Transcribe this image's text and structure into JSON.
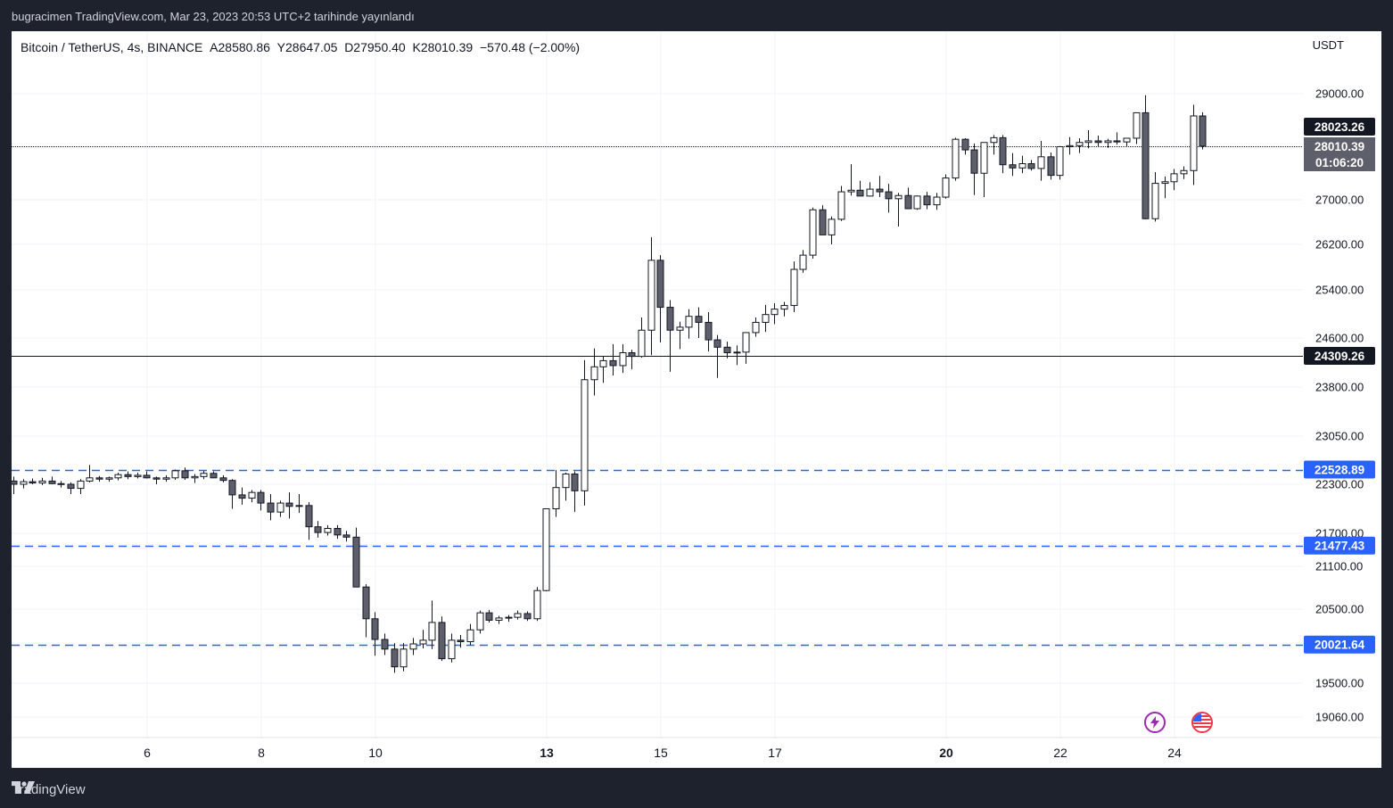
{
  "header": {
    "caption": "bugracimen TradingView.com, Mar 23, 2023 20:53 UTC+2 tarihinde yayınlandı"
  },
  "legend": {
    "symbol": "Bitcoin / TetherUS, 4s, BINANCE",
    "open": "A28580.86",
    "high": "Y28647.05",
    "low": "D27950.40",
    "close": "K28010.39",
    "change": "−570.48 (−2.00%)"
  },
  "footer": {
    "brand": "TradingView",
    "logo_icon": "tradingview-logo-icon"
  },
  "icons": {
    "flash": "lightning-icon",
    "flag": "us-flag-icon"
  },
  "colors": {
    "up_body": "#ffffff",
    "down_body": "#5d606b",
    "candle_stroke": "#131722",
    "dashed_line": "#2962ff",
    "label_blue": "#2962ff",
    "label_dark": "#131722",
    "label_gray": "#5d606b",
    "grid": "#f0f3fa"
  },
  "chart_data": {
    "type": "candlestick",
    "title": "Bitcoin / TetherUS, 4s, BINANCE",
    "y_unit": "USDT",
    "ylim": [
      18800,
      29900
    ],
    "y_ticks": [
      "29000.00",
      "27000.00",
      "26200.00",
      "25400.00",
      "24600.00",
      "23800.00",
      "23050.00",
      "22300.00",
      "21700.00",
      "21100.00",
      "20500.00",
      "19500.00",
      "19060.00"
    ],
    "x_ticks": [
      "6",
      "8",
      "10",
      "13",
      "15",
      "17",
      "20",
      "22",
      "24"
    ],
    "x_bold": [
      "13",
      "20"
    ],
    "price_labels": [
      {
        "text": "28023.26",
        "value": 28023.26,
        "style": "dark"
      },
      {
        "text": "28010.39",
        "value": 28010.39,
        "style": "gray"
      },
      {
        "text": "01:06:20",
        "value": 28010.39,
        "style": "gray-sub"
      },
      {
        "text": "24309.26",
        "value": 24309.26,
        "style": "dark"
      },
      {
        "text": "22528.89",
        "value": 22528.89,
        "style": "blue"
      },
      {
        "text": "21477.43",
        "value": 21477.43,
        "style": "blue"
      },
      {
        "text": "20021.64",
        "value": 20021.64,
        "style": "blue"
      }
    ],
    "horizontal_lines": [
      {
        "value": 28010.39,
        "style": "dotted"
      },
      {
        "value": 24309.26,
        "style": "solid"
      },
      {
        "value": 22528.89,
        "style": "dashed"
      },
      {
        "value": 21477.43,
        "style": "dashed"
      },
      {
        "value": 20021.64,
        "style": "dashed"
      }
    ],
    "candles_ohlc": [
      [
        22350,
        22420,
        22180,
        22300
      ],
      [
        22300,
        22380,
        22250,
        22340
      ],
      [
        22340,
        22390,
        22300,
        22320
      ],
      [
        22320,
        22400,
        22290,
        22350
      ],
      [
        22350,
        22420,
        22300,
        22310
      ],
      [
        22310,
        22350,
        22260,
        22300
      ],
      [
        22300,
        22330,
        22180,
        22250
      ],
      [
        22250,
        22380,
        22180,
        22350
      ],
      [
        22350,
        22600,
        22330,
        22400
      ],
      [
        22400,
        22430,
        22340,
        22380
      ],
      [
        22380,
        22420,
        22340,
        22400
      ],
      [
        22400,
        22480,
        22360,
        22450
      ],
      [
        22450,
        22500,
        22380,
        22420
      ],
      [
        22420,
        22480,
        22390,
        22440
      ],
      [
        22440,
        22500,
        22390,
        22400
      ],
      [
        22400,
        22420,
        22300,
        22380
      ],
      [
        22380,
        22440,
        22340,
        22400
      ],
      [
        22400,
        22530,
        22370,
        22510
      ],
      [
        22510,
        22560,
        22370,
        22400
      ],
      [
        22400,
        22460,
        22320,
        22420
      ],
      [
        22420,
        22510,
        22380,
        22470
      ],
      [
        22470,
        22500,
        22400,
        22400
      ],
      [
        22400,
        22440,
        22330,
        22360
      ],
      [
        22360,
        22380,
        22000,
        22170
      ],
      [
        22170,
        22260,
        22050,
        22130
      ],
      [
        22130,
        22230,
        22080,
        22200
      ],
      [
        22200,
        22230,
        21980,
        22070
      ],
      [
        22070,
        22180,
        21860,
        21960
      ],
      [
        21960,
        22100,
        21900,
        22070
      ],
      [
        22070,
        22200,
        21880,
        22030
      ],
      [
        22030,
        22180,
        21950,
        22040
      ],
      [
        22040,
        22080,
        21580,
        21780
      ],
      [
        21780,
        21850,
        21620,
        21710
      ],
      [
        21710,
        21800,
        21660,
        21760
      ],
      [
        21760,
        21800,
        21600,
        21670
      ],
      [
        21670,
        21730,
        21550,
        21630
      ],
      [
        21630,
        21770,
        20880,
        20810
      ],
      [
        20810,
        20850,
        20120,
        20370
      ],
      [
        20370,
        20460,
        19870,
        20090
      ],
      [
        20090,
        20170,
        19880,
        19960
      ],
      [
        19960,
        20040,
        19640,
        19720
      ],
      [
        19720,
        20040,
        19660,
        19960
      ],
      [
        19960,
        20110,
        19880,
        20030
      ],
      [
        20030,
        20220,
        19970,
        20080
      ],
      [
        20080,
        20620,
        19960,
        20320
      ],
      [
        20320,
        20400,
        19800,
        19830
      ],
      [
        19830,
        20170,
        19780,
        20080
      ],
      [
        20080,
        20150,
        19980,
        20060
      ],
      [
        20060,
        20300,
        20010,
        20220
      ],
      [
        20220,
        20480,
        20170,
        20450
      ],
      [
        20450,
        20490,
        20320,
        20350
      ],
      [
        20350,
        20410,
        20300,
        20380
      ],
      [
        20380,
        20420,
        20330,
        20390
      ],
      [
        20390,
        20480,
        20360,
        20440
      ],
      [
        20440,
        20470,
        20340,
        20370
      ],
      [
        20370,
        20810,
        20340,
        20760
      ],
      [
        20760,
        21450,
        20750,
        22000
      ],
      [
        22000,
        22520,
        21900,
        22260
      ],
      [
        22260,
        22480,
        22100,
        22460
      ],
      [
        22460,
        22500,
        21960,
        22220
      ],
      [
        22220,
        24240,
        22040,
        23920
      ],
      [
        23920,
        24430,
        23670,
        24130
      ],
      [
        24130,
        24310,
        23870,
        24230
      ],
      [
        24230,
        24500,
        23990,
        24150
      ],
      [
        24150,
        24500,
        24030,
        24360
      ],
      [
        24360,
        24410,
        24090,
        24300
      ],
      [
        24300,
        24940,
        24280,
        24730
      ],
      [
        24730,
        26330,
        24320,
        25920
      ],
      [
        25920,
        26010,
        24530,
        25110
      ],
      [
        25110,
        25230,
        24050,
        24730
      ],
      [
        24730,
        24870,
        24420,
        24780
      ],
      [
        24780,
        25080,
        24590,
        24960
      ],
      [
        24960,
        25110,
        24600,
        24860
      ],
      [
        24860,
        25030,
        24380,
        24570
      ],
      [
        24570,
        24650,
        23950,
        24450
      ],
      [
        24450,
        24540,
        24270,
        24360
      ],
      [
        24360,
        24480,
        24160,
        24370
      ],
      [
        24370,
        24630,
        24180,
        24690
      ],
      [
        24690,
        24940,
        24620,
        24860
      ],
      [
        24860,
        25150,
        24700,
        24990
      ],
      [
        24990,
        25180,
        24830,
        25080
      ],
      [
        25080,
        25200,
        24960,
        25140
      ],
      [
        25140,
        25900,
        25030,
        25760
      ],
      [
        25760,
        26100,
        25700,
        26010
      ],
      [
        26010,
        26860,
        25950,
        26820
      ],
      [
        26820,
        26900,
        26370,
        26370
      ],
      [
        26370,
        26700,
        26200,
        26650
      ],
      [
        26650,
        27260,
        26620,
        27150
      ],
      [
        27150,
        27670,
        27080,
        27180
      ],
      [
        27180,
        27360,
        27080,
        27070
      ],
      [
        27070,
        27330,
        27060,
        27200
      ],
      [
        27200,
        27450,
        27050,
        27150
      ],
      [
        27150,
        27300,
        26770,
        27020
      ],
      [
        27020,
        27130,
        26520,
        27080
      ],
      [
        27080,
        27230,
        26890,
        26840
      ],
      [
        26840,
        27080,
        26820,
        27070
      ],
      [
        27070,
        27150,
        26830,
        26910
      ],
      [
        26910,
        27130,
        26820,
        27050
      ],
      [
        27050,
        27480,
        27020,
        27410
      ],
      [
        27410,
        28170,
        27360,
        28140
      ],
      [
        28140,
        28160,
        27850,
        27940
      ],
      [
        27940,
        28060,
        27090,
        27500
      ],
      [
        27500,
        28040,
        27050,
        28080
      ],
      [
        28080,
        28220,
        27850,
        28170
      ],
      [
        28170,
        28220,
        27500,
        27660
      ],
      [
        27660,
        27880,
        27450,
        27600
      ],
      [
        27600,
        27830,
        27500,
        27680
      ],
      [
        27680,
        27750,
        27550,
        27590
      ],
      [
        27590,
        28110,
        27360,
        27810
      ],
      [
        27810,
        27890,
        27380,
        27460
      ],
      [
        27460,
        28010,
        27380,
        28000
      ],
      [
        28000,
        28180,
        27850,
        28020
      ],
      [
        28020,
        28160,
        27880,
        28080
      ],
      [
        28080,
        28310,
        27970,
        28110
      ],
      [
        28110,
        28210,
        27990,
        28080
      ],
      [
        28080,
        28150,
        27980,
        28110
      ],
      [
        28110,
        28270,
        28040,
        28090
      ],
      [
        28090,
        28160,
        28010,
        28160
      ],
      [
        28160,
        28490,
        28050,
        28640
      ],
      [
        28640,
        28970,
        26650,
        26660
      ],
      [
        26660,
        27520,
        26610,
        27310
      ],
      [
        27310,
        27440,
        27030,
        27340
      ],
      [
        27340,
        27580,
        27180,
        27490
      ],
      [
        27490,
        27630,
        27390,
        27550
      ],
      [
        27550,
        28790,
        27280,
        28580
      ],
      [
        28580,
        28650,
        27950,
        28010
      ]
    ],
    "grid": true
  }
}
